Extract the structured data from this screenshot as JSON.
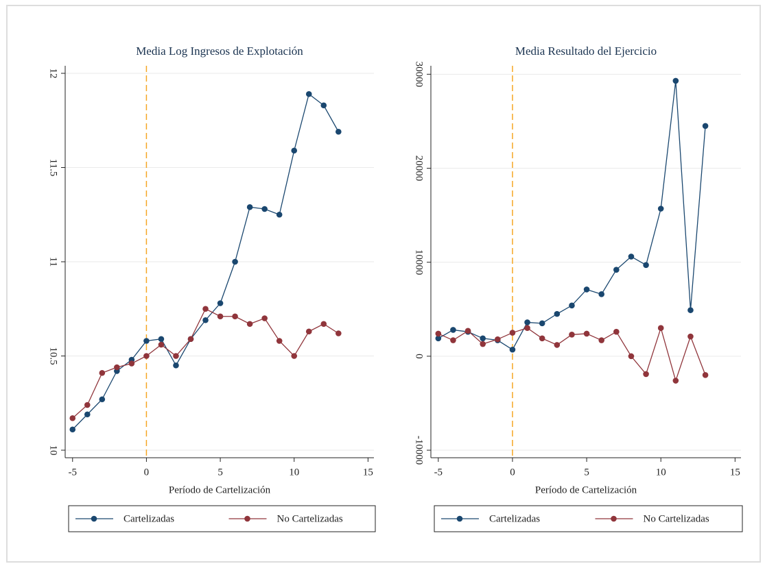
{
  "chart_data": [
    {
      "type": "line",
      "title": "Media Log Ingresos de Explotación",
      "x_label": "Período de Cartelización",
      "x": [
        -5,
        -4,
        -3,
        -2,
        -1,
        0,
        1,
        2,
        3,
        4,
        5,
        6,
        7,
        8,
        9,
        10,
        11,
        12,
        13
      ],
      "series": [
        {
          "name": "Cartelizadas",
          "color": "#1a476f",
          "values": [
            10.11,
            10.19,
            10.27,
            10.42,
            10.48,
            10.58,
            10.59,
            10.45,
            10.59,
            10.69,
            10.78,
            11.0,
            11.29,
            11.28,
            11.25,
            11.59,
            11.89,
            11.83,
            11.69
          ]
        },
        {
          "name": "No Cartelizadas",
          "color": "#90353b",
          "values": [
            10.17,
            10.24,
            10.41,
            10.44,
            10.46,
            10.5,
            10.56,
            10.5,
            10.59,
            10.75,
            10.71,
            10.71,
            10.67,
            10.7,
            10.58,
            10.5,
            10.63,
            10.67,
            10.62
          ]
        }
      ],
      "xlim": [
        -5.5,
        15.4
      ],
      "xticks": [
        -5,
        0,
        5,
        10,
        15
      ],
      "ylim": [
        9.96,
        12.04
      ],
      "yticks": [
        10,
        10.5,
        11,
        11.5,
        12
      ],
      "grid": true,
      "vline": 0,
      "vline_color": "#f5a623",
      "legend": "bottom"
    },
    {
      "type": "line",
      "title": "Media Resultado del Ejercicio",
      "x_label": "Período de Cartelización",
      "x": [
        -5,
        -4,
        -3,
        -2,
        -1,
        0,
        1,
        2,
        3,
        4,
        5,
        6,
        7,
        8,
        9,
        10,
        11,
        12,
        13
      ],
      "series": [
        {
          "name": "Cartelizadas",
          "color": "#1a476f",
          "values": [
            1900,
            2800,
            2600,
            1900,
            1700,
            700,
            3600,
            3500,
            4500,
            5400,
            7100,
            6600,
            9200,
            10600,
            9700,
            15700,
            29300,
            4900,
            24500
          ]
        },
        {
          "name": "No Cartelizadas",
          "color": "#90353b",
          "values": [
            2400,
            1700,
            2700,
            1300,
            1800,
            2500,
            3000,
            1900,
            1200,
            2300,
            2400,
            1700,
            2600,
            0,
            -1900,
            3000,
            -2600,
            2100,
            -2000
          ]
        }
      ],
      "xlim": [
        -5.5,
        15.4
      ],
      "xticks": [
        -5,
        0,
        5,
        10,
        15
      ],
      "ylim": [
        -10800,
        30900
      ],
      "yticks": [
        -10000,
        0,
        10000,
        20000,
        30000
      ],
      "grid": true,
      "vline": 0,
      "vline_color": "#f5a623",
      "legend": "bottom"
    }
  ]
}
